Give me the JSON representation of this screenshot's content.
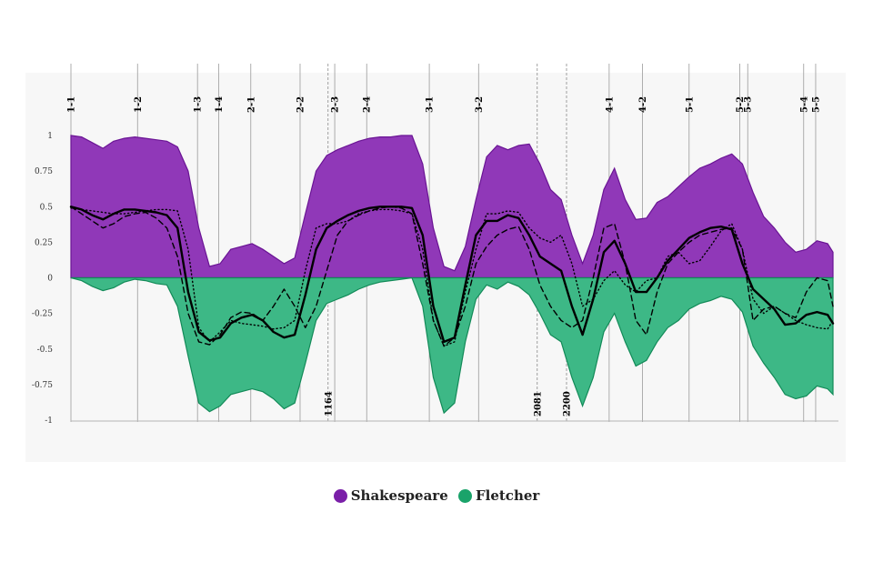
{
  "chart_data": {
    "type": "area",
    "ylim": [
      -1,
      1
    ],
    "x_range": [
      0,
      2860
    ],
    "y_ticks": [
      "1",
      "0.75",
      "0.5",
      "0.25",
      "0",
      "-0.25",
      "-0.5",
      "-0.75",
      "-1"
    ],
    "scene_markers": [
      {
        "label": "1-1",
        "x": 0
      },
      {
        "label": "1-2",
        "x": 250
      },
      {
        "label": "1-3",
        "x": 475
      },
      {
        "label": "1-4",
        "x": 555
      },
      {
        "label": "2-1",
        "x": 675
      },
      {
        "label": "2-2",
        "x": 860
      },
      {
        "label": "2-3",
        "x": 990
      },
      {
        "label": "2-4",
        "x": 1110
      },
      {
        "label": "3-1",
        "x": 1345
      },
      {
        "label": "3-2",
        "x": 1530
      },
      {
        "label": "4-1",
        "x": 2020
      },
      {
        "label": "4-2",
        "x": 2145
      },
      {
        "label": "5-1",
        "x": 2320
      },
      {
        "label": "5-2",
        "x": 2510
      },
      {
        "label": "5-3",
        "x": 2540
      },
      {
        "label": "5-4",
        "x": 2750
      },
      {
        "label": "5-5",
        "x": 2795
      }
    ],
    "line_markers": [
      {
        "label": "1164",
        "x": 965
      },
      {
        "label": "2081",
        "x": 1750
      },
      {
        "label": "2200",
        "x": 1860
      }
    ],
    "x": [
      0,
      40,
      80,
      120,
      160,
      200,
      240,
      280,
      320,
      360,
      400,
      440,
      480,
      520,
      560,
      600,
      640,
      680,
      720,
      760,
      800,
      840,
      880,
      920,
      960,
      1000,
      1040,
      1080,
      1120,
      1160,
      1200,
      1240,
      1280,
      1320,
      1360,
      1400,
      1440,
      1480,
      1520,
      1560,
      1600,
      1640,
      1680,
      1720,
      1760,
      1800,
      1840,
      1880,
      1920,
      1960,
      2000,
      2040,
      2080,
      2120,
      2160,
      2200,
      2240,
      2280,
      2320,
      2360,
      2400,
      2440,
      2480,
      2520,
      2560,
      2600,
      2640,
      2680,
      2720,
      2760,
      2800,
      2840,
      2860
    ],
    "series": [
      {
        "name": "Shakespeare",
        "color": "#7a1fa8",
        "kind": "area",
        "values": [
          1,
          0.99,
          0.95,
          0.91,
          0.96,
          0.98,
          0.99,
          0.98,
          0.97,
          0.96,
          0.92,
          0.75,
          0.35,
          0.08,
          0.1,
          0.2,
          0.22,
          0.24,
          0.2,
          0.15,
          0.1,
          0.14,
          0.45,
          0.75,
          0.86,
          0.9,
          0.93,
          0.96,
          0.98,
          0.99,
          0.99,
          1,
          1,
          0.8,
          0.35,
          0.08,
          0.05,
          0.22,
          0.55,
          0.85,
          0.93,
          0.9,
          0.93,
          0.94,
          0.8,
          0.62,
          0.55,
          0.3,
          0.1,
          0.3,
          0.62,
          0.77,
          0.55,
          0.41,
          0.42,
          0.53,
          0.57,
          0.64,
          0.71,
          0.77,
          0.8,
          0.84,
          0.87,
          0.8,
          0.6,
          0.43,
          0.35,
          0.25,
          0.18,
          0.2,
          0.26,
          0.24,
          0.18
        ]
      },
      {
        "name": "Fletcher",
        "color": "#1aa36a",
        "kind": "area",
        "values": [
          0,
          -0.02,
          -0.06,
          -0.09,
          -0.07,
          -0.03,
          -0.01,
          -0.02,
          -0.04,
          -0.05,
          -0.2,
          -0.55,
          -0.88,
          -0.94,
          -0.9,
          -0.82,
          -0.8,
          -0.78,
          -0.8,
          -0.85,
          -0.92,
          -0.88,
          -0.6,
          -0.3,
          -0.18,
          -0.15,
          -0.12,
          -0.08,
          -0.05,
          -0.03,
          -0.02,
          -0.01,
          0,
          -0.2,
          -0.7,
          -0.95,
          -0.88,
          -0.45,
          -0.15,
          -0.05,
          -0.08,
          -0.03,
          -0.06,
          -0.12,
          -0.25,
          -0.4,
          -0.45,
          -0.7,
          -0.9,
          -0.7,
          -0.38,
          -0.25,
          -0.45,
          -0.62,
          -0.58,
          -0.45,
          -0.35,
          -0.3,
          -0.22,
          -0.18,
          -0.16,
          -0.13,
          -0.15,
          -0.24,
          -0.48,
          -0.6,
          -0.7,
          -0.82,
          -0.85,
          -0.83,
          -0.76,
          -0.78,
          -0.82
        ]
      },
      {
        "kind": "line",
        "style": "solid",
        "values": [
          0.5,
          0.48,
          0.44,
          0.41,
          0.45,
          0.48,
          0.48,
          0.47,
          0.46,
          0.44,
          0.35,
          -0.1,
          -0.38,
          -0.44,
          -0.42,
          -0.32,
          -0.28,
          -0.26,
          -0.3,
          -0.38,
          -0.42,
          -0.4,
          -0.12,
          0.2,
          0.35,
          0.4,
          0.44,
          0.47,
          0.49,
          0.5,
          0.5,
          0.5,
          0.49,
          0.3,
          -0.2,
          -0.45,
          -0.42,
          -0.05,
          0.3,
          0.4,
          0.4,
          0.44,
          0.42,
          0.3,
          0.15,
          0.1,
          0.05,
          -0.2,
          -0.4,
          -0.15,
          0.18,
          0.26,
          0.1,
          -0.1,
          -0.1,
          0.0,
          0.12,
          0.2,
          0.28,
          0.32,
          0.35,
          0.36,
          0.34,
          0.1,
          -0.08,
          -0.15,
          -0.22,
          -0.33,
          -0.32,
          -0.26,
          -0.24,
          -0.26,
          -0.32
        ]
      },
      {
        "kind": "line",
        "style": "dashed",
        "values": [
          0.5,
          0.45,
          0.4,
          0.35,
          0.38,
          0.43,
          0.45,
          0.46,
          0.42,
          0.35,
          0.15,
          -0.25,
          -0.45,
          -0.47,
          -0.4,
          -0.28,
          -0.24,
          -0.25,
          -0.3,
          -0.2,
          -0.08,
          -0.2,
          -0.35,
          -0.2,
          0.05,
          0.3,
          0.4,
          0.44,
          0.47,
          0.49,
          0.5,
          0.49,
          0.45,
          0.1,
          -0.3,
          -0.48,
          -0.42,
          -0.2,
          0.1,
          0.22,
          0.3,
          0.34,
          0.36,
          0.2,
          -0.05,
          -0.2,
          -0.3,
          -0.35,
          -0.3,
          0.0,
          0.35,
          0.38,
          0.1,
          -0.3,
          -0.4,
          -0.1,
          0.1,
          0.18,
          0.25,
          0.3,
          0.32,
          0.34,
          0.35,
          0.2,
          -0.3,
          -0.22,
          -0.2,
          -0.25,
          -0.28,
          -0.1,
          0.0,
          -0.02,
          -0.2
        ]
      },
      {
        "kind": "line",
        "style": "dotted",
        "values": [
          0.49,
          0.48,
          0.47,
          0.46,
          0.45,
          0.45,
          0.46,
          0.47,
          0.48,
          0.48,
          0.47,
          0.2,
          -0.35,
          -0.45,
          -0.38,
          -0.3,
          -0.32,
          -0.33,
          -0.34,
          -0.36,
          -0.35,
          -0.3,
          0.05,
          0.35,
          0.38,
          0.38,
          0.4,
          0.45,
          0.47,
          0.48,
          0.48,
          0.47,
          0.45,
          0.2,
          -0.3,
          -0.48,
          -0.45,
          -0.1,
          0.2,
          0.45,
          0.45,
          0.47,
          0.46,
          0.35,
          0.28,
          0.25,
          0.3,
          0.1,
          -0.2,
          -0.15,
          -0.02,
          0.05,
          -0.05,
          -0.1,
          -0.02,
          0.0,
          0.15,
          0.18,
          0.1,
          0.12,
          0.22,
          0.33,
          0.38,
          0.2,
          -0.15,
          -0.25,
          -0.2,
          -0.25,
          -0.3,
          -0.33,
          -0.35,
          -0.36,
          -0.3
        ]
      }
    ]
  },
  "legend": {
    "items": [
      {
        "label": "Shakespeare",
        "color": "#7a1fa8"
      },
      {
        "label": "Fletcher",
        "color": "#1aa36a"
      }
    ]
  }
}
